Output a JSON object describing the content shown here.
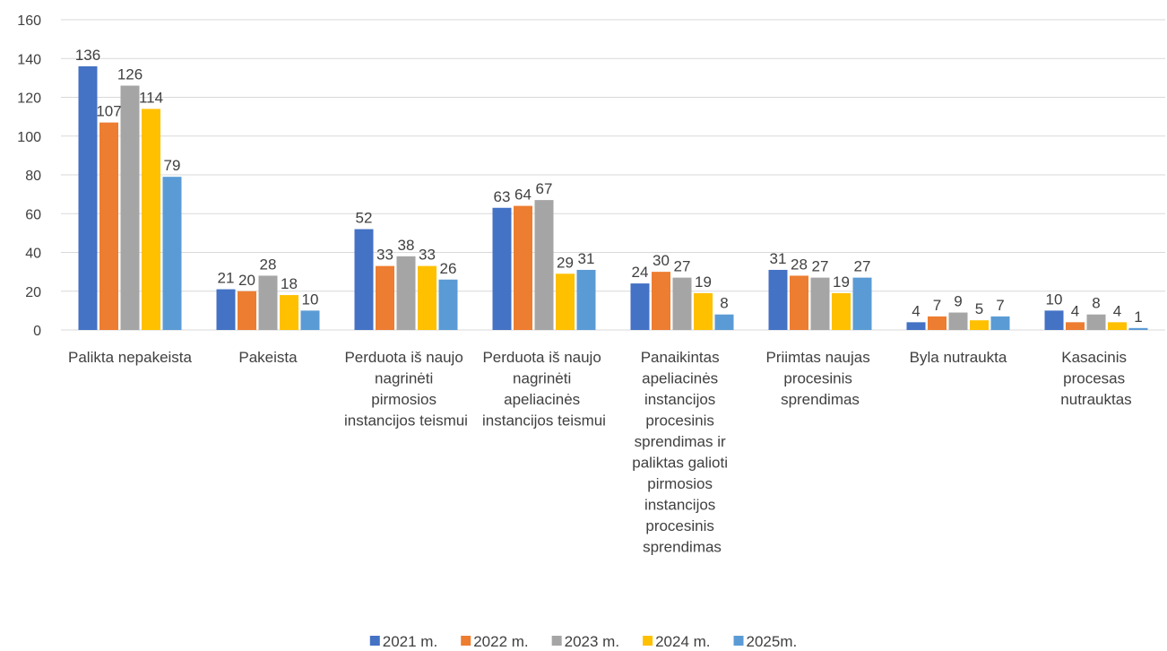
{
  "chart_data": {
    "type": "bar",
    "categories": [
      "Palikta nepakeista",
      "Pakeista",
      "Perduota iš naujo nagrinėti pirmosios instancijos teismui",
      "Perduota iš naujo nagrinėti apeliacinės instancijos teismui",
      "Panaikintas apeliacinės instancijos procesinis sprendimas ir paliktas galioti pirmosios instancijos procesinis sprendimas",
      "Priimtas naujas procesinis sprendimas",
      "Byla nutraukta",
      "Kasacinis procesas nutrauktas"
    ],
    "series": [
      {
        "name": "2021 m.",
        "color": "#4472c4",
        "values": [
          136,
          21,
          52,
          63,
          24,
          31,
          4,
          10
        ]
      },
      {
        "name": "2022 m.",
        "color": "#ed7d31",
        "values": [
          107,
          20,
          33,
          64,
          30,
          28,
          7,
          4
        ]
      },
      {
        "name": "2023 m.",
        "color": "#a5a5a5",
        "values": [
          126,
          28,
          38,
          67,
          27,
          27,
          9,
          8
        ]
      },
      {
        "name": "2024 m.",
        "color": "#ffc000",
        "values": [
          114,
          18,
          33,
          29,
          19,
          19,
          5,
          4
        ]
      },
      {
        "name": "2025m.",
        "color": "#5b9bd5",
        "values": [
          79,
          10,
          26,
          31,
          8,
          27,
          7,
          1
        ]
      }
    ],
    "ylim": [
      0,
      160
    ],
    "yticks": [
      0,
      20,
      40,
      60,
      80,
      100,
      120,
      140,
      160
    ],
    "grid": true,
    "legend": "bottom"
  }
}
